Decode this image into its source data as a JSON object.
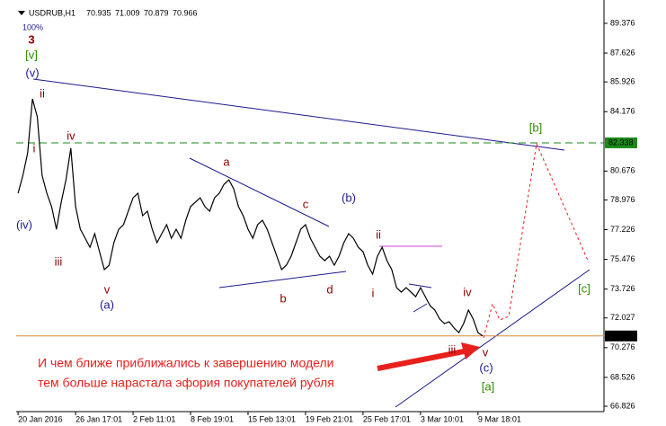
{
  "chart_data": {
    "type": "line",
    "symbol": "USDRUB,H1",
    "ohlc": [
      70.935,
      71.009,
      70.879,
      70.966
    ],
    "zoom": "100%",
    "series": [
      {
        "name": "USDRUB",
        "color": "#000000",
        "values": [
          79.37,
          80.43,
          81.75,
          84.93,
          83.87,
          80.43,
          79.37,
          78.58,
          77.25,
          78.84,
          80.16,
          82.02,
          78.58,
          77.25,
          76.72,
          76.19,
          76.99,
          75.93,
          74.87,
          75.13,
          76.46,
          77.25,
          77.52,
          78.31,
          79.1,
          79.37,
          78.05,
          78.31,
          77.25,
          76.46,
          76.99,
          77.52,
          76.72,
          77.25,
          76.72,
          77.78,
          78.58,
          78.84,
          79.1,
          78.58,
          78.31,
          79.1,
          79.37,
          79.9,
          80.16,
          79.63,
          78.58,
          78.05,
          77.25,
          76.72,
          77.52,
          77.78,
          77.25,
          76.46,
          75.66,
          74.87,
          75.13,
          75.66,
          76.46,
          77.25,
          77.52,
          76.72,
          76.19,
          75.66,
          75.4,
          75.66,
          75.13,
          75.66,
          76.46,
          76.99,
          76.72,
          76.19,
          75.93,
          75.13,
          74.61,
          75.66,
          76.19,
          75.4,
          74.87,
          73.81,
          73.55,
          73.81,
          73.55,
          73.28,
          73.81,
          73.28,
          72.75,
          72.49,
          71.96,
          71.69,
          71.8,
          71.43,
          71.16,
          71.69,
          72.49,
          71.96,
          71.16,
          70.966
        ]
      }
    ],
    "xlim": [
      -0.4,
      122.3
    ],
    "xticks": [
      {
        "value": 0,
        "label": "20 Jan 2016"
      },
      {
        "value": 12,
        "label": "26 Jan 17:01"
      },
      {
        "value": 24,
        "label": "2 Feb 11:01"
      },
      {
        "value": 36,
        "label": "8 Feb 19:01"
      },
      {
        "value": 48,
        "label": "15 Feb 13:01"
      },
      {
        "value": 60,
        "label": "19 Feb 21:01"
      },
      {
        "value": 72,
        "label": "25 Feb 17:01"
      },
      {
        "value": 84,
        "label": "3 Mar 10:01"
      },
      {
        "value": 96,
        "label": "9 Mar 18:01"
      }
    ],
    "ylim": [
      66.51,
      90.75
    ],
    "yticks": [
      89.376,
      87.626,
      85.926,
      84.176,
      80.676,
      78.976,
      77.226,
      75.476,
      73.726,
      72.027,
      70.276,
      68.526,
      66.826
    ],
    "levels": [
      {
        "value": 82.338,
        "color": "#1a8a1a"
      },
      {
        "value": 70.966,
        "color": "#d98a3a"
      }
    ],
    "wave_labels": [
      {
        "text": "3",
        "color": "#8b0000"
      },
      {
        "text": "[v]",
        "color": "#2e8b00"
      },
      {
        "text": "(v)",
        "color": "#1a1a8c"
      },
      {
        "text": "ii",
        "color": "#8b0000"
      },
      {
        "text": "iv",
        "color": "#8b0000"
      },
      {
        "text": "i",
        "color": "#8b0000"
      },
      {
        "text": "(iv)",
        "color": "#1a1a8c"
      },
      {
        "text": "iii",
        "color": "#8b0000"
      },
      {
        "text": "v",
        "color": "#8b0000"
      },
      {
        "text": "(a)",
        "color": "#1a1a8c"
      },
      {
        "text": "a",
        "color": "#8b0000"
      },
      {
        "text": "c",
        "color": "#8b0000"
      },
      {
        "text": "(b)",
        "color": "#1a1a8c"
      },
      {
        "text": "b",
        "color": "#8b0000"
      },
      {
        "text": "d",
        "color": "#8b0000"
      },
      {
        "text": "ii",
        "color": "#8b0000"
      },
      {
        "text": "i",
        "color": "#8b0000"
      },
      {
        "text": "iv",
        "color": "#8b0000"
      },
      {
        "text": "iii",
        "color": "#8b0000"
      },
      {
        "text": "v",
        "color": "#8b0000"
      },
      {
        "text": "(c)",
        "color": "#1a1a8c"
      },
      {
        "text": "[a]",
        "color": "#2e8b00"
      },
      {
        "text": "[b]",
        "color": "#2e8b00"
      },
      {
        "text": "[c]",
        "color": "#2e8b00"
      }
    ],
    "annotation": [
      "И чем ближе приближались к завершению модели",
      "тем больше нарастала эфория покупателей рубля"
    ]
  }
}
